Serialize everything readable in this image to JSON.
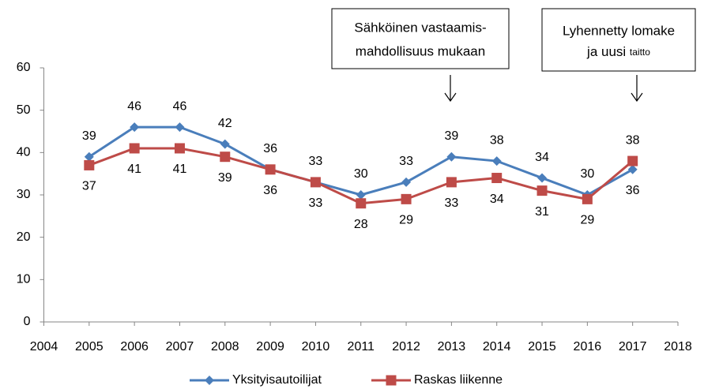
{
  "chart_data": {
    "type": "line",
    "x": [
      2005,
      2006,
      2007,
      2008,
      2009,
      2010,
      2011,
      2012,
      2013,
      2014,
      2015,
      2016,
      2017
    ],
    "xlim": [
      2004,
      2018
    ],
    "xticks": [
      2004,
      2005,
      2006,
      2007,
      2008,
      2009,
      2010,
      2011,
      2012,
      2013,
      2014,
      2015,
      2016,
      2017,
      2018
    ],
    "ylim": [
      0,
      60
    ],
    "yticks": [
      0,
      10,
      20,
      30,
      40,
      50,
      60
    ],
    "grid": false,
    "legend": "bottom",
    "series": [
      {
        "name": "Yksityisautoilijat",
        "color": "#4a7ebb",
        "marker": "diamond",
        "values": [
          39,
          46,
          46,
          42,
          36,
          33,
          30,
          33,
          39,
          38,
          34,
          30,
          36
        ]
      },
      {
        "name": "Raskas liikenne",
        "color": "#be4b48",
        "marker": "square",
        "values": [
          37,
          41,
          41,
          39,
          36,
          33,
          28,
          29,
          33,
          34,
          31,
          29,
          38
        ]
      }
    ],
    "annotations": [
      {
        "lines": [
          "Sähköinen vastaamis-",
          "mahdollisuus mukaan"
        ]
      },
      {
        "lines": [
          "Lyhennetty lomake",
          "ja uusi"
        ],
        "small_text": "taitto"
      }
    ]
  }
}
